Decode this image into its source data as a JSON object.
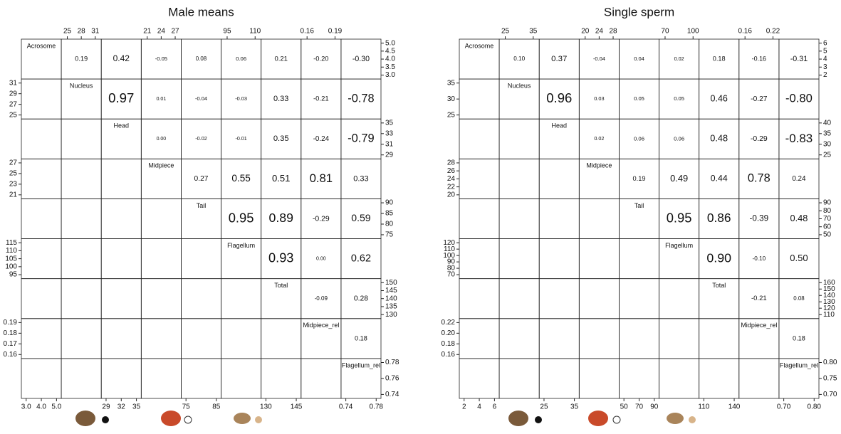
{
  "panels": [
    {
      "title": "Male means",
      "variables": [
        "Acrosome",
        "Nucleus",
        "Head",
        "Midpiece",
        "Tail",
        "Flagellum",
        "Total",
        "Midpiece_rel",
        "Flagellum_rel"
      ],
      "correlations": [
        [
          "0.19",
          "0.42",
          "-0.05",
          "0.08",
          "0.06",
          "0.21",
          "-0.20",
          "-0.30"
        ],
        [
          "0.97",
          "0.01",
          "-0.04",
          "-0.03",
          "0.33",
          "-0.21",
          "-0.78"
        ],
        [
          "0.00",
          "-0.02",
          "-0.01",
          "0.35",
          "-0.24",
          "-0.79"
        ],
        [
          "0.27",
          "0.55",
          "0.51",
          "0.81",
          "0.33"
        ],
        [
          "0.95",
          "0.89",
          "-0.29",
          "0.59"
        ],
        [
          "0.93",
          "0.00",
          "0.62"
        ],
        [
          "-0.09",
          "0.28"
        ],
        [
          "0.18"
        ]
      ],
      "top_ticks": [
        [
          "25",
          "28",
          "31"
        ],
        [
          "21",
          "24",
          "27"
        ],
        [
          "95",
          "110"
        ],
        [
          "0.16",
          "0.19"
        ]
      ],
      "bottom_ticks": [
        [
          "3.0",
          "4.0",
          "5.0"
        ],
        [
          "29",
          "32",
          "35"
        ],
        [
          "75",
          "85"
        ],
        [
          "130",
          "145"
        ],
        [
          "0.74",
          "0.78"
        ]
      ],
      "left_ticks": [
        [
          "31",
          "29",
          "27",
          "25"
        ],
        [
          "27",
          "25",
          "23",
          "21"
        ],
        [
          "115",
          "110",
          "105",
          "100",
          "95"
        ],
        [
          "0.19",
          "0.18",
          "0.17",
          "0.16"
        ]
      ],
      "right_ticks": [
        [
          "5.0",
          "4.5",
          "4.0",
          "3.5",
          "3.0"
        ],
        [
          "35",
          "33",
          "31",
          "29"
        ],
        [
          "90",
          "85",
          "80",
          "75"
        ],
        [
          "150",
          "145",
          "140",
          "135",
          "130"
        ],
        [
          "0.78",
          "0.76",
          "0.74"
        ]
      ]
    },
    {
      "title": "Single sperm",
      "variables": [
        "Acrosome",
        "Nucleus",
        "Head",
        "Midpiece",
        "Tail",
        "Flagellum",
        "Total",
        "Midpiece_rel",
        "Flagellum_rel"
      ],
      "correlations": [
        [
          "0.10",
          "0.37",
          "-0.04",
          "0.04",
          "0.02",
          "0.18",
          "-0.16",
          "-0.31"
        ],
        [
          "0.96",
          "0.03",
          "0.05",
          "0.05",
          "0.46",
          "-0.27",
          "-0.80"
        ],
        [
          "0.02",
          "0.06",
          "0.06",
          "0.48",
          "-0.29",
          "-0.83"
        ],
        [
          "0.19",
          "0.49",
          "0.44",
          "0.78",
          "0.24"
        ],
        [
          "0.95",
          "0.86",
          "-0.39",
          "0.48"
        ],
        [
          "0.90",
          "-0.10",
          "0.50"
        ],
        [
          "-0.21",
          "0.08"
        ],
        [
          "0.18"
        ]
      ],
      "top_ticks": [
        [
          "25",
          "35"
        ],
        [
          "20",
          "24",
          "28"
        ],
        [
          "70",
          "100"
        ],
        [
          "0.16",
          "0.22"
        ]
      ],
      "bottom_ticks": [
        [
          "2",
          "4",
          "6"
        ],
        [
          "25",
          "35"
        ],
        [
          "50",
          "70",
          "90"
        ],
        [
          "110",
          "140"
        ],
        [
          "0.70",
          "0.80"
        ]
      ],
      "left_ticks": [
        [
          "35",
          "30",
          "25"
        ],
        [
          "28",
          "26",
          "24",
          "22",
          "20"
        ],
        [
          "120",
          "110",
          "100",
          "90",
          "80",
          "70"
        ],
        [
          "0.22",
          "0.20",
          "0.18",
          "0.16"
        ]
      ],
      "right_ticks": [
        [
          "6",
          "5",
          "4",
          "3",
          "2"
        ],
        [
          "40",
          "35",
          "30",
          "25"
        ],
        [
          "90",
          "80",
          "70",
          "60",
          "50"
        ],
        [
          "160",
          "150",
          "140",
          "130",
          "120",
          "110"
        ],
        [
          "0.80",
          "0.75",
          "0.70"
        ]
      ]
    }
  ]
}
